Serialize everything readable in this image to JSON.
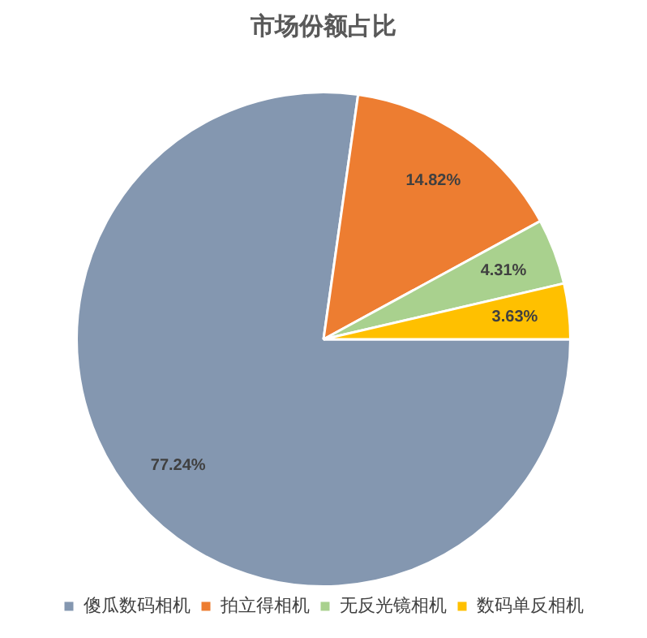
{
  "chart_data": {
    "type": "pie",
    "title": "市场份额占比",
    "categories": [
      "傻瓜数码相机",
      "拍立得相机",
      "无反光镜相机",
      "数码单反相机"
    ],
    "values": [
      77.24,
      14.82,
      4.31,
      3.63
    ],
    "colors": [
      "#8497b0",
      "#ed7d31",
      "#a9d18e",
      "#ffc000"
    ],
    "value_labels": [
      "77.24%",
      "14.82%",
      "4.31%",
      "3.63%"
    ],
    "legend": "bottom"
  }
}
